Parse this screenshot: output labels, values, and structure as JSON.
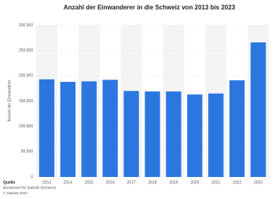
{
  "chart_data": {
    "type": "bar",
    "title": "Anzahl der Einwanderer in die Schweiz von 2013 bis 2023",
    "y_label": "Anzahl der Einwanderer",
    "categories": [
      "2013",
      "2014",
      "2015",
      "2016",
      "2017",
      "2018",
      "2019",
      "2020",
      "2021",
      "2022",
      "2023"
    ],
    "values": [
      193000,
      188000,
      189000,
      192000,
      170000,
      169000,
      169000,
      163000,
      165000,
      191000,
      266000
    ],
    "color": "#2b77df",
    "ylim": [
      0,
      300000
    ],
    "yticks": [
      0,
      {
        "value": 50000,
        "label": "50.000"
      },
      {
        "value": 100000,
        "label": "100.000"
      },
      {
        "value": 150000,
        "label": "150.000"
      },
      {
        "value": 200000,
        "label": "200.000"
      },
      {
        "value": 250000,
        "label": "250.000"
      },
      {
        "value": 300000,
        "label": "300.000"
      }
    ],
    "grid": true,
    "source_heading": "Quelle",
    "source": "Bundesamt für Statistik (Schweiz)",
    "copyright": "© Statista 2024"
  }
}
